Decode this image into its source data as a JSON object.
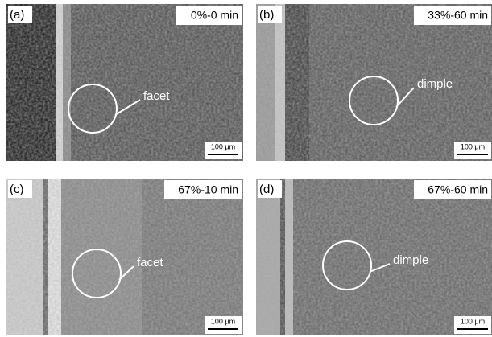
{
  "panels": [
    {
      "label": "(a)",
      "condition": "0%-0 min",
      "annotation": "facet",
      "scale_bar": "100 μm"
    },
    {
      "label": "(b)",
      "condition": "33%-60 min",
      "annotation": "dimple",
      "scale_bar": "100 μm"
    },
    {
      "label": "(c)",
      "condition": "67%-10 min",
      "annotation": "facet",
      "scale_bar": "100 μm"
    },
    {
      "label": "(d)",
      "condition": "67%-60 min",
      "annotation": "dimple",
      "scale_bar": "100 μm"
    }
  ]
}
